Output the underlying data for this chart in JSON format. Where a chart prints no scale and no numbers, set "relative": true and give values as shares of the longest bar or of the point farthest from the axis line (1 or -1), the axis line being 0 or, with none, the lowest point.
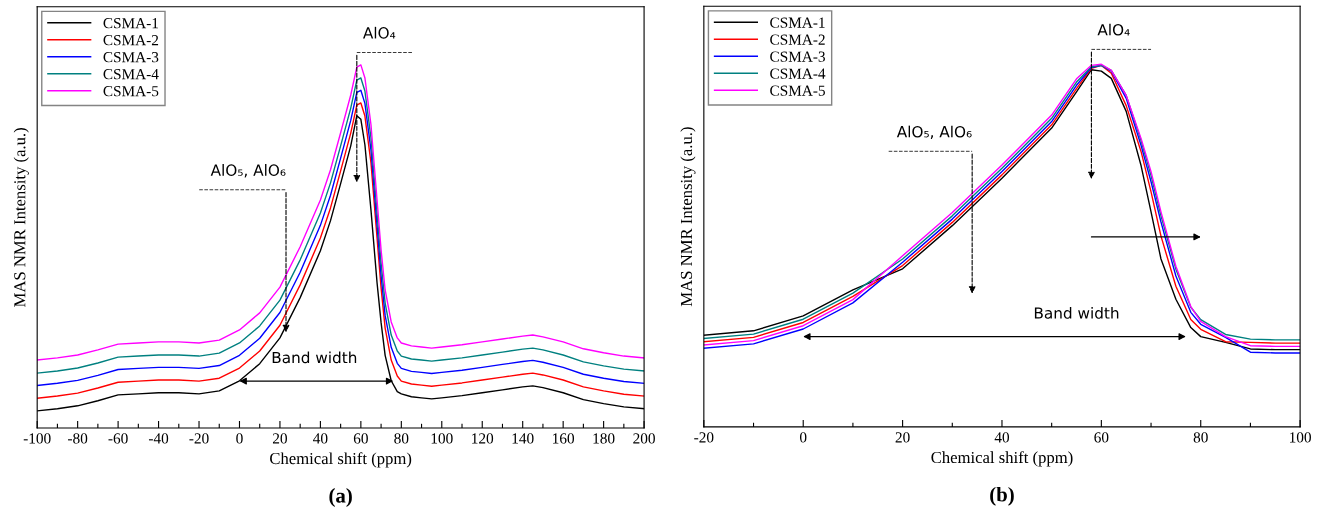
{
  "chart_data": [
    {
      "type": "line",
      "title": "(a)",
      "xlabel": "Chemical shift (ppm)",
      "ylabel": "MAS NMR Intensity (a.u.)",
      "relative": true,
      "legend": "top left",
      "grid": false,
      "line_style": "solid",
      "marker": "none",
      "x": [
        -100,
        -90,
        -80,
        -70,
        -60,
        -50,
        -40,
        -30,
        -20,
        -10,
        0,
        10,
        20,
        30,
        40,
        45,
        50,
        55,
        58,
        60,
        62,
        65,
        68,
        70,
        72,
        75,
        78,
        80,
        85,
        90,
        95,
        100,
        110,
        120,
        130,
        140,
        145,
        150,
        160,
        170,
        180,
        190,
        200
      ],
      "xlim": [
        -100,
        200
      ],
      "xticks": [
        -100,
        {
          "value": -90,
          "label": null
        },
        -80,
        {
          "value": -70,
          "label": null
        },
        -60,
        {
          "value": -50,
          "label": null
        },
        -40,
        {
          "value": -30,
          "label": null
        },
        -20,
        {
          "value": -10,
          "label": null
        },
        0,
        {
          "value": 10,
          "label": null
        },
        20,
        {
          "value": 30,
          "label": null
        },
        40,
        {
          "value": 50,
          "label": null
        },
        60,
        {
          "value": 70,
          "label": null
        },
        80,
        {
          "value": 90,
          "label": null
        },
        100,
        {
          "value": 110,
          "label": null
        },
        120,
        {
          "value": 130,
          "label": null
        },
        140,
        {
          "value": 150,
          "label": null
        },
        160,
        {
          "value": 170,
          "label": null
        },
        180,
        {
          "value": 190,
          "label": null
        },
        200
      ],
      "series": [
        {
          "name": "CSMA-1",
          "color": "#000000",
          "values": [
            0.047,
            0.053,
            0.061,
            0.075,
            0.091,
            0.094,
            0.097,
            0.097,
            0.094,
            0.102,
            0.13,
            0.177,
            0.248,
            0.359,
            0.488,
            0.571,
            0.673,
            0.777,
            0.86,
            0.85,
            0.78,
            0.6,
            0.4,
            0.29,
            0.2,
            0.13,
            0.1,
            0.094,
            0.086,
            0.083,
            0.08,
            0.083,
            0.089,
            0.097,
            0.105,
            0.113,
            0.116,
            0.111,
            0.097,
            0.078,
            0.067,
            0.058,
            0.053
          ]
        },
        {
          "name": "CSMA-2",
          "color": "#ff0000",
          "values": [
            0.082,
            0.088,
            0.096,
            0.11,
            0.126,
            0.129,
            0.132,
            0.132,
            0.129,
            0.137,
            0.165,
            0.212,
            0.283,
            0.394,
            0.523,
            0.606,
            0.708,
            0.812,
            0.889,
            0.895,
            0.859,
            0.73,
            0.523,
            0.385,
            0.275,
            0.187,
            0.143,
            0.129,
            0.121,
            0.118,
            0.115,
            0.118,
            0.124,
            0.132,
            0.14,
            0.148,
            0.151,
            0.146,
            0.132,
            0.113,
            0.102,
            0.093,
            0.088
          ]
        },
        {
          "name": "CSMA-3",
          "color": "#0000ff",
          "values": [
            0.117,
            0.123,
            0.131,
            0.145,
            0.161,
            0.164,
            0.167,
            0.167,
            0.164,
            0.172,
            0.2,
            0.247,
            0.318,
            0.429,
            0.558,
            0.641,
            0.743,
            0.847,
            0.924,
            0.93,
            0.894,
            0.765,
            0.558,
            0.42,
            0.31,
            0.222,
            0.178,
            0.164,
            0.156,
            0.153,
            0.15,
            0.153,
            0.159,
            0.167,
            0.175,
            0.183,
            0.186,
            0.181,
            0.167,
            0.148,
            0.137,
            0.128,
            0.123
          ]
        },
        {
          "name": "CSMA-4",
          "color": "#008080",
          "values": [
            0.151,
            0.157,
            0.165,
            0.179,
            0.195,
            0.198,
            0.201,
            0.201,
            0.198,
            0.206,
            0.234,
            0.281,
            0.352,
            0.463,
            0.592,
            0.675,
            0.777,
            0.881,
            0.958,
            0.964,
            0.928,
            0.799,
            0.592,
            0.454,
            0.344,
            0.256,
            0.212,
            0.198,
            0.19,
            0.187,
            0.184,
            0.187,
            0.193,
            0.201,
            0.209,
            0.217,
            0.22,
            0.215,
            0.201,
            0.182,
            0.171,
            0.162,
            0.157
          ]
        },
        {
          "name": "CSMA-5",
          "color": "#ff00ff",
          "values": [
            0.187,
            0.193,
            0.201,
            0.215,
            0.231,
            0.234,
            0.237,
            0.237,
            0.234,
            0.242,
            0.27,
            0.317,
            0.388,
            0.499,
            0.628,
            0.711,
            0.813,
            0.917,
            0.994,
            1.0,
            0.964,
            0.835,
            0.628,
            0.49,
            0.38,
            0.292,
            0.248,
            0.234,
            0.226,
            0.223,
            0.22,
            0.223,
            0.229,
            0.237,
            0.245,
            0.253,
            0.256,
            0.251,
            0.237,
            0.218,
            0.207,
            0.198,
            0.193
          ]
        }
      ],
      "annotations": [
        "AlO₄",
        "AlO₅, AlO₆",
        "Band width"
      ]
    },
    {
      "type": "line",
      "title": "(b)",
      "xlabel": "Chemical shift (ppm)",
      "ylabel": "MAS NMR Intensity (a.u.)",
      "relative": true,
      "legend": "top left",
      "grid": false,
      "line_style": "solid",
      "marker": "none",
      "x": [
        -20,
        -10,
        0,
        10,
        20,
        30,
        40,
        50,
        55,
        58,
        60,
        62,
        65,
        68,
        70,
        72,
        75,
        78,
        80,
        85,
        90,
        95,
        100
      ],
      "xlim": [
        -20,
        100
      ],
      "xticks": [
        -20,
        {
          "value": -10,
          "label": null
        },
        0,
        {
          "value": 10,
          "label": null
        },
        20,
        {
          "value": 30,
          "label": null
        },
        40,
        {
          "value": 50,
          "label": null
        },
        60,
        {
          "value": 70,
          "label": null
        },
        80,
        {
          "value": 90,
          "label": null
        },
        100
      ],
      "series": [
        {
          "name": "CSMA-1",
          "color": "#000000",
          "values": [
            0.253,
            0.265,
            0.306,
            0.378,
            0.436,
            0.555,
            0.686,
            0.824,
            0.924,
            0.985,
            0.981,
            0.961,
            0.87,
            0.72,
            0.593,
            0.463,
            0.352,
            0.274,
            0.249,
            0.233,
            0.215,
            0.213,
            0.213
          ]
        },
        {
          "name": "CSMA-2",
          "color": "#ff0000",
          "values": [
            0.235,
            0.247,
            0.288,
            0.36,
            0.445,
            0.564,
            0.695,
            0.833,
            0.933,
            0.989,
            0.997,
            0.975,
            0.886,
            0.759,
            0.648,
            0.526,
            0.388,
            0.296,
            0.269,
            0.235,
            0.233,
            0.231,
            0.231
          ]
        },
        {
          "name": "CSMA-3",
          "color": "#0000ff",
          "values": [
            0.217,
            0.229,
            0.27,
            0.342,
            0.454,
            0.573,
            0.704,
            0.842,
            0.942,
            0.991,
            0.997,
            0.981,
            0.906,
            0.776,
            0.676,
            0.565,
            0.416,
            0.316,
            0.283,
            0.247,
            0.206,
            0.204,
            0.204
          ]
        },
        {
          "name": "CSMA-4",
          "color": "#008080",
          "values": [
            0.244,
            0.256,
            0.297,
            0.369,
            0.463,
            0.582,
            0.713,
            0.851,
            0.951,
            0.993,
            0.997,
            0.983,
            0.914,
            0.789,
            0.693,
            0.582,
            0.435,
            0.33,
            0.296,
            0.255,
            0.242,
            0.24,
            0.24
          ]
        },
        {
          "name": "CSMA-5",
          "color": "#ff00ff",
          "values": [
            0.226,
            0.238,
            0.279,
            0.351,
            0.472,
            0.591,
            0.722,
            0.86,
            0.96,
            0.997,
            1.0,
            0.983,
            0.914,
            0.795,
            0.704,
            0.593,
            0.443,
            0.332,
            0.291,
            0.249,
            0.224,
            0.222,
            0.222
          ]
        }
      ],
      "annotations": [
        "AlO₄",
        "AlO₅, AlO₆",
        "Band width"
      ]
    }
  ]
}
